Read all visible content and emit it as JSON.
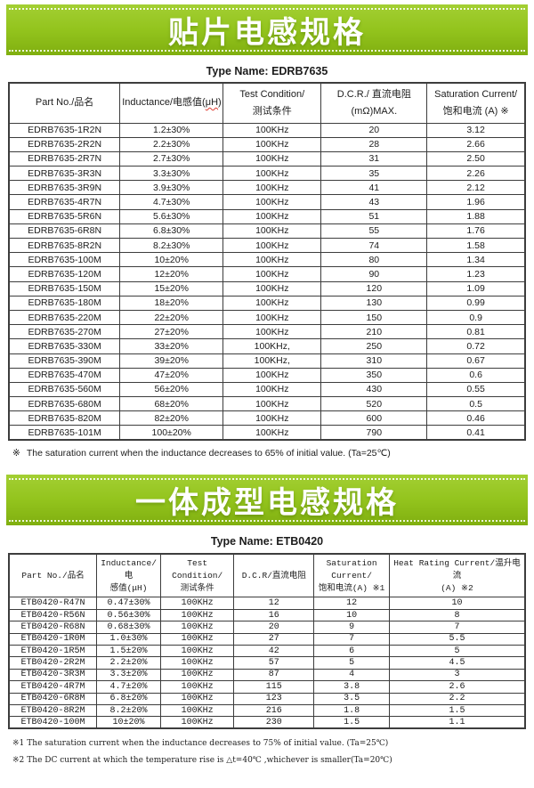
{
  "accent_color": "#93c41d",
  "section1": {
    "banner_title": "贴片电感规格",
    "type_name": "Type Name: EDRB7635",
    "table": {
      "header": {
        "part": "Part No./品名",
        "inductance_prefix": "Inductance/电感值(",
        "inductance_unit": "μH",
        "inductance_suffix": ")",
        "test_line1": "Test Condition/",
        "test_line2": "测试条件",
        "dcr_line1": "D.C.R./ 直流电阻",
        "dcr_line2": "(mΩ)MAX.",
        "sat_line1": "Saturation Current/",
        "sat_line2": "饱和电流 (A)  ※"
      },
      "rows": [
        [
          "EDRB7635-1R2N",
          "1.2±30%",
          "100KHz",
          "20",
          "3.12"
        ],
        [
          "EDRB7635-2R2N",
          "2.2±30%",
          "100KHz",
          "28",
          "2.66"
        ],
        [
          "EDRB7635-2R7N",
          "2.7±30%",
          "100KHz",
          "31",
          "2.50"
        ],
        [
          "EDRB7635-3R3N",
          "3.3±30%",
          "100KHz",
          "35",
          "2.26"
        ],
        [
          "EDRB7635-3R9N",
          "3.9±30%",
          "100KHz",
          "41",
          "2.12"
        ],
        [
          "EDRB7635-4R7N",
          "4.7±30%",
          "100KHz",
          "43",
          "1.96"
        ],
        [
          "EDRB7635-5R6N",
          "5.6±30%",
          "100KHz",
          "51",
          "1.88"
        ],
        [
          "EDRB7635-6R8N",
          "6.8±30%",
          "100KHz",
          "55",
          "1.76"
        ],
        [
          "EDRB7635-8R2N",
          "8.2±30%",
          "100KHz",
          "74",
          "1.58"
        ],
        [
          "EDRB7635-100M",
          "10±20%",
          "100KHz",
          "80",
          "1.34"
        ],
        [
          "EDRB7635-120M",
          "12±20%",
          "100KHz",
          "90",
          "1.23"
        ],
        [
          "EDRB7635-150M",
          "15±20%",
          "100KHz",
          "120",
          "1.09"
        ],
        [
          "EDRB7635-180M",
          "18±20%",
          "100KHz",
          "130",
          "0.99"
        ],
        [
          "EDRB7635-220M",
          "22±20%",
          "100KHz",
          "150",
          "0.9"
        ],
        [
          "EDRB7635-270M",
          "27±20%",
          "100KHz",
          "210",
          "0.81"
        ],
        [
          "EDRB7635-330M",
          "33±20%",
          "100KHz,",
          "250",
          "0.72"
        ],
        [
          "EDRB7635-390M",
          "39±20%",
          "100KHz,",
          "310",
          "0.67"
        ],
        [
          "EDRB7635-470M",
          "47±20%",
          "100KHz",
          "350",
          "0.6"
        ],
        [
          "EDRB7635-560M",
          "56±20%",
          "100KHz",
          "430",
          "0.55"
        ],
        [
          "EDRB7635-680M",
          "68±20%",
          "100KHz",
          "520",
          "0.5"
        ],
        [
          "EDRB7635-820M",
          "82±20%",
          "100KHz",
          "600",
          "0.46"
        ],
        [
          "EDRB7635-101M",
          "100±20%",
          "100KHz",
          "790",
          "0.41"
        ]
      ]
    },
    "footnote": {
      "marker": "※",
      "text": "The saturation current when the inductance decreases to 65% of initial value. (Ta=25℃)"
    }
  },
  "section2": {
    "banner_title": "一体成型电感规格",
    "type_name": "Type Name: ETB0420",
    "table": {
      "header": {
        "part": "Part No./品名",
        "ind_line1": "Inductance/电",
        "ind_line2": "感值(μH)",
        "test_line1": "Test Condition/",
        "test_line2": "测试条件",
        "dcr": "D.C.R/直流电阻",
        "sat_line1": "Saturation Current/",
        "sat_line2": "饱和电流(A)  ※1",
        "heat_line1": "Heat Rating Current/温升电流",
        "heat_line2": "(A) ※2"
      },
      "rows": [
        [
          "ETB0420-R47N",
          "0.47±30%",
          "100KHz",
          "12",
          "12",
          "10"
        ],
        [
          "ETB0420-R56N",
          "0.56±30%",
          "100KHz",
          "16",
          "10",
          "8"
        ],
        [
          "ETB0420-R68N",
          "0.68±30%",
          "100KHz",
          "20",
          "9",
          "7"
        ],
        [
          "ETB0420-1R0M",
          "1.0±30%",
          "100KHz",
          "27",
          "7",
          "5.5"
        ],
        [
          "ETB0420-1R5M",
          "1.5±20%",
          "100KHz",
          "42",
          "6",
          "5"
        ],
        [
          "ETB0420-2R2M",
          "2.2±20%",
          "100KHz",
          "57",
          "5",
          "4.5"
        ],
        [
          "ETB0420-3R3M",
          "3.3±20%",
          "100KHz",
          "87",
          "4",
          "3"
        ],
        [
          "ETB0420-4R7M",
          "4.7±20%",
          "100KHz",
          "115",
          "3.8",
          "2.6"
        ],
        [
          "ETB0420-6R8M",
          "6.8±20%",
          "100KHz",
          "123",
          "3.5",
          "2.2"
        ],
        [
          "ETB0420-8R2M",
          "8.2±20%",
          "100KHz",
          "216",
          "1.8",
          "1.5"
        ],
        [
          "ETB0420-100M",
          "10±20%",
          "100KHz",
          "230",
          "1.5",
          "1.1"
        ]
      ]
    },
    "footnotes": [
      {
        "marker": "※1",
        "text": "The saturation current when the inductance decreases to 75% of initial value. (Ta=25℃)"
      },
      {
        "marker": "※2",
        "text": "The DC current at which the temperature rise is △t=40℃ ,whichever is smaller(Ta=20℃)"
      }
    ]
  }
}
